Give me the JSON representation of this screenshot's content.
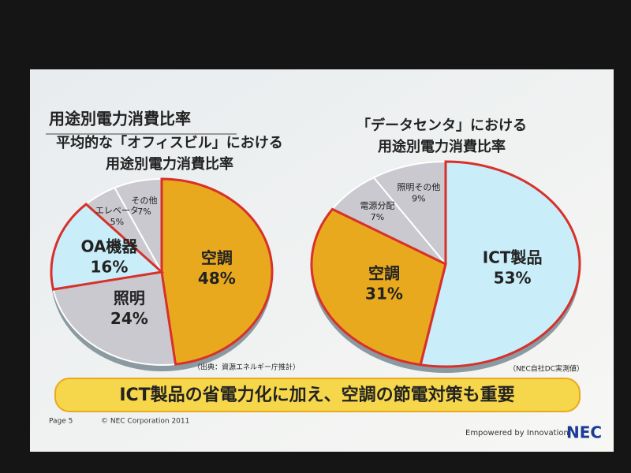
{
  "slide": {
    "title": "用途別電力消費比率",
    "banner": "ICT製品の省電力化に加え、空調の節電対策も重要",
    "page": "Page 5",
    "copyright": "© NEC Corporation 2011",
    "tagline": "Empowered by Innovation",
    "logo": "NEC"
  },
  "chart_data": [
    {
      "type": "pie",
      "title": "平均的な「オフィスビル」における",
      "subtitle": "用途別電力消費比率",
      "categories": [
        "空調",
        "照明",
        "OA機器",
        "エレベータ",
        "その他"
      ],
      "values": [
        48,
        24,
        16,
        5,
        7
      ],
      "value_labels": [
        "48%",
        "24%",
        "16%",
        "5%",
        "7%"
      ],
      "colors": [
        "#e9a91f",
        "#c9c9cf",
        "#c9eef9",
        "#c9c9cf",
        "#c9c9cf"
      ],
      "outlined": [
        true,
        false,
        true,
        false,
        false
      ],
      "outline_color": "#d8302a",
      "note": "（出典：資源エネルギー庁推計）"
    },
    {
      "type": "pie",
      "title": "「データセンタ」における",
      "subtitle": "用途別電力消費比率",
      "categories": [
        "ICT製品",
        "空調",
        "電源分配",
        "照明その他"
      ],
      "values": [
        53,
        31,
        7,
        9
      ],
      "value_labels": [
        "53%",
        "31%",
        "7%",
        "9%"
      ],
      "colors": [
        "#c9eef9",
        "#e9a91f",
        "#c9c9cf",
        "#c9c9cf"
      ],
      "outlined": [
        true,
        true,
        false,
        false
      ],
      "outline_color": "#d8302a",
      "note": "（NEC自社DC実測値）"
    }
  ]
}
